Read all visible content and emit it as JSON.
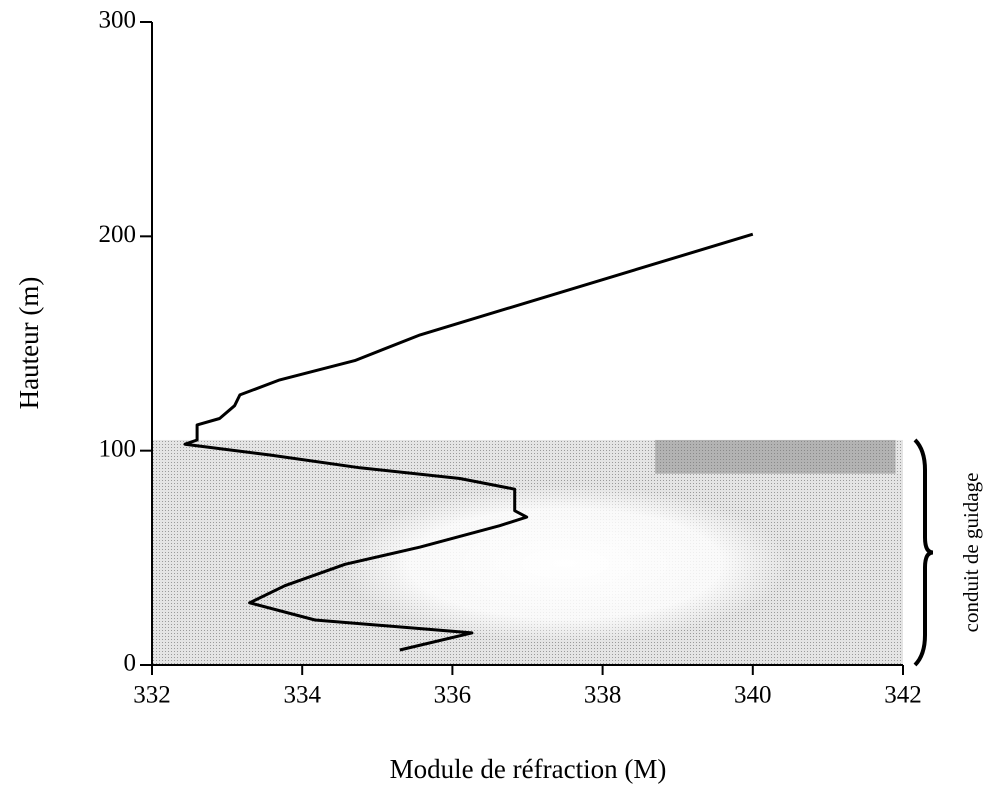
{
  "chart_data": {
    "type": "line",
    "x_label": "Module de réfraction (M)",
    "y_label": "Hauteur (m)",
    "xlim": [
      332,
      342
    ],
    "xticks": [
      332,
      334,
      336,
      338,
      340,
      342
    ],
    "ylim": [
      0,
      300
    ],
    "yticks": [
      0,
      100,
      200,
      300
    ],
    "duct": {
      "label": "conduit de guidage",
      "ylim": [
        0,
        105
      ]
    },
    "series": [
      {
        "color": "#000000",
        "x": [
          335.3,
          336.26,
          334.17,
          333.3,
          333.77,
          334.57,
          335.57,
          336.63,
          336.99,
          336.83,
          336.83,
          336.1,
          334.77,
          333.57,
          332.44,
          332.6,
          332.6,
          332.9,
          333.1,
          333.17,
          333.7,
          334.7,
          335.57,
          340.0
        ],
        "values": [
          7,
          15,
          21,
          29,
          37,
          47,
          55,
          65,
          69,
          72,
          82,
          87,
          92,
          98,
          103,
          105,
          112,
          115,
          121,
          126,
          133,
          142,
          154,
          201
        ]
      }
    ]
  }
}
